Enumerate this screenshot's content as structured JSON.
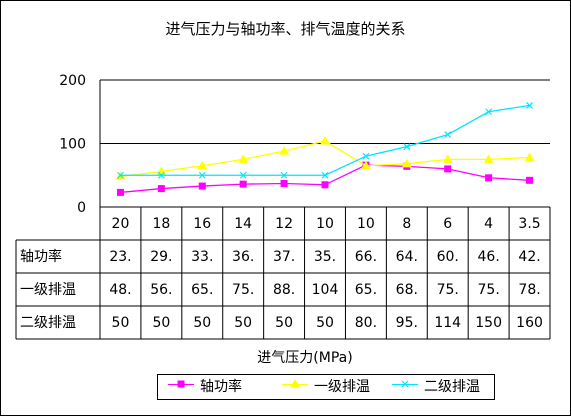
{
  "chart_data": {
    "type": "line",
    "title": "进气压力与轴功率、排气温度的关系",
    "xlabel": "进气压力(MPa)",
    "ylabel": "",
    "ylim": [
      0,
      200
    ],
    "yticks": [
      "0",
      "100",
      "200"
    ],
    "categories": [
      "20",
      "18",
      "16",
      "14",
      "12",
      "10",
      "10",
      "8",
      "6",
      "4",
      "3.5"
    ],
    "series": [
      {
        "name": "轴功率",
        "color": "#ff00ff",
        "marker": "square",
        "values": [
          23,
          29,
          33,
          36,
          37,
          35,
          66,
          64,
          60,
          46,
          42
        ],
        "table_text": [
          "23.",
          "29.",
          "33.",
          "36.",
          "37.",
          "35.",
          "66.",
          "64.",
          "60.",
          "46.",
          "42."
        ]
      },
      {
        "name": "一级排温",
        "color": "#ffff00",
        "marker": "triangle",
        "values": [
          48,
          56,
          65,
          75,
          88,
          104,
          65,
          68,
          75,
          75,
          78
        ],
        "table_text": [
          "48.",
          "56.",
          "65.",
          "75.",
          "88.",
          "104",
          "65.",
          "68.",
          "75.",
          "75.",
          "78."
        ]
      },
      {
        "name": "二级排温",
        "color": "#00e5ff",
        "marker": "x",
        "values": [
          50,
          50,
          50,
          50,
          50,
          50,
          80,
          95,
          114,
          150,
          160
        ],
        "table_text": [
          "50",
          "50",
          "50",
          "50",
          "50",
          "50",
          "80.",
          "95.",
          "114",
          "150",
          "160"
        ]
      }
    ],
    "grid": true,
    "legend_position": "bottom"
  }
}
